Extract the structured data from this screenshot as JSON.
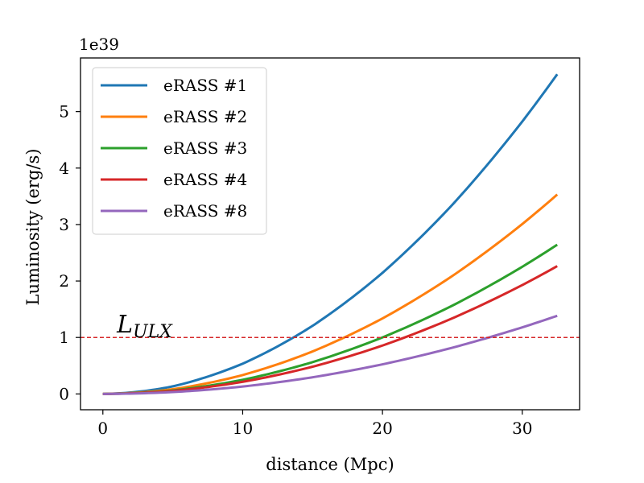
{
  "chart_data": {
    "type": "line",
    "xlabel": "distance (Mpc)",
    "ylabel": "Luminosity (erg/s)",
    "y_offset_label": "1e39",
    "xlim": [
      -1.6,
      34.1
    ],
    "ylim": [
      -0.28,
      5.95
    ],
    "x_ticks": [
      0,
      10,
      20,
      30
    ],
    "y_ticks": [
      0,
      1,
      2,
      3,
      4,
      5
    ],
    "legend_position": "upper-left",
    "grid": false,
    "x_range": [
      0,
      32.5
    ],
    "series": [
      {
        "name": "eRASS #1",
        "color": "#1f77b4",
        "x": [
          0,
          5,
          10,
          15,
          20,
          25,
          30,
          32.5
        ],
        "y": [
          0,
          0.134,
          0.536,
          1.206,
          2.144,
          3.35,
          4.825,
          5.662
        ]
      },
      {
        "name": "eRASS #2",
        "color": "#ff7f0e",
        "x": [
          0,
          5,
          10,
          15,
          20,
          25,
          30,
          32.5
        ],
        "y": [
          0,
          0.084,
          0.334,
          0.752,
          1.337,
          2.09,
          3.009,
          3.531
        ]
      },
      {
        "name": "eRASS #3",
        "color": "#2ca02c",
        "x": [
          0,
          5,
          10,
          15,
          20,
          25,
          30,
          32.5
        ],
        "y": [
          0,
          0.063,
          0.25,
          0.563,
          1.001,
          1.564,
          2.252,
          2.643
        ]
      },
      {
        "name": "eRASS #4",
        "color": "#d62728",
        "x": [
          0,
          5,
          10,
          15,
          20,
          25,
          30,
          32.5
        ],
        "y": [
          0,
          0.054,
          0.214,
          0.482,
          0.857,
          1.339,
          1.929,
          2.263
        ]
      },
      {
        "name": "eRASS #8",
        "color": "#9467bd",
        "x": [
          0,
          5,
          10,
          15,
          20,
          25,
          30,
          32.5
        ],
        "y": [
          0,
          0.033,
          0.131,
          0.295,
          0.524,
          0.819,
          1.179,
          1.384
        ]
      }
    ],
    "reference_line": {
      "y": 1,
      "color": "#d62728",
      "style": "dashed"
    },
    "annotation": {
      "text": "L",
      "subscript": "ULX",
      "x": 1.0,
      "y": 1.0
    }
  }
}
